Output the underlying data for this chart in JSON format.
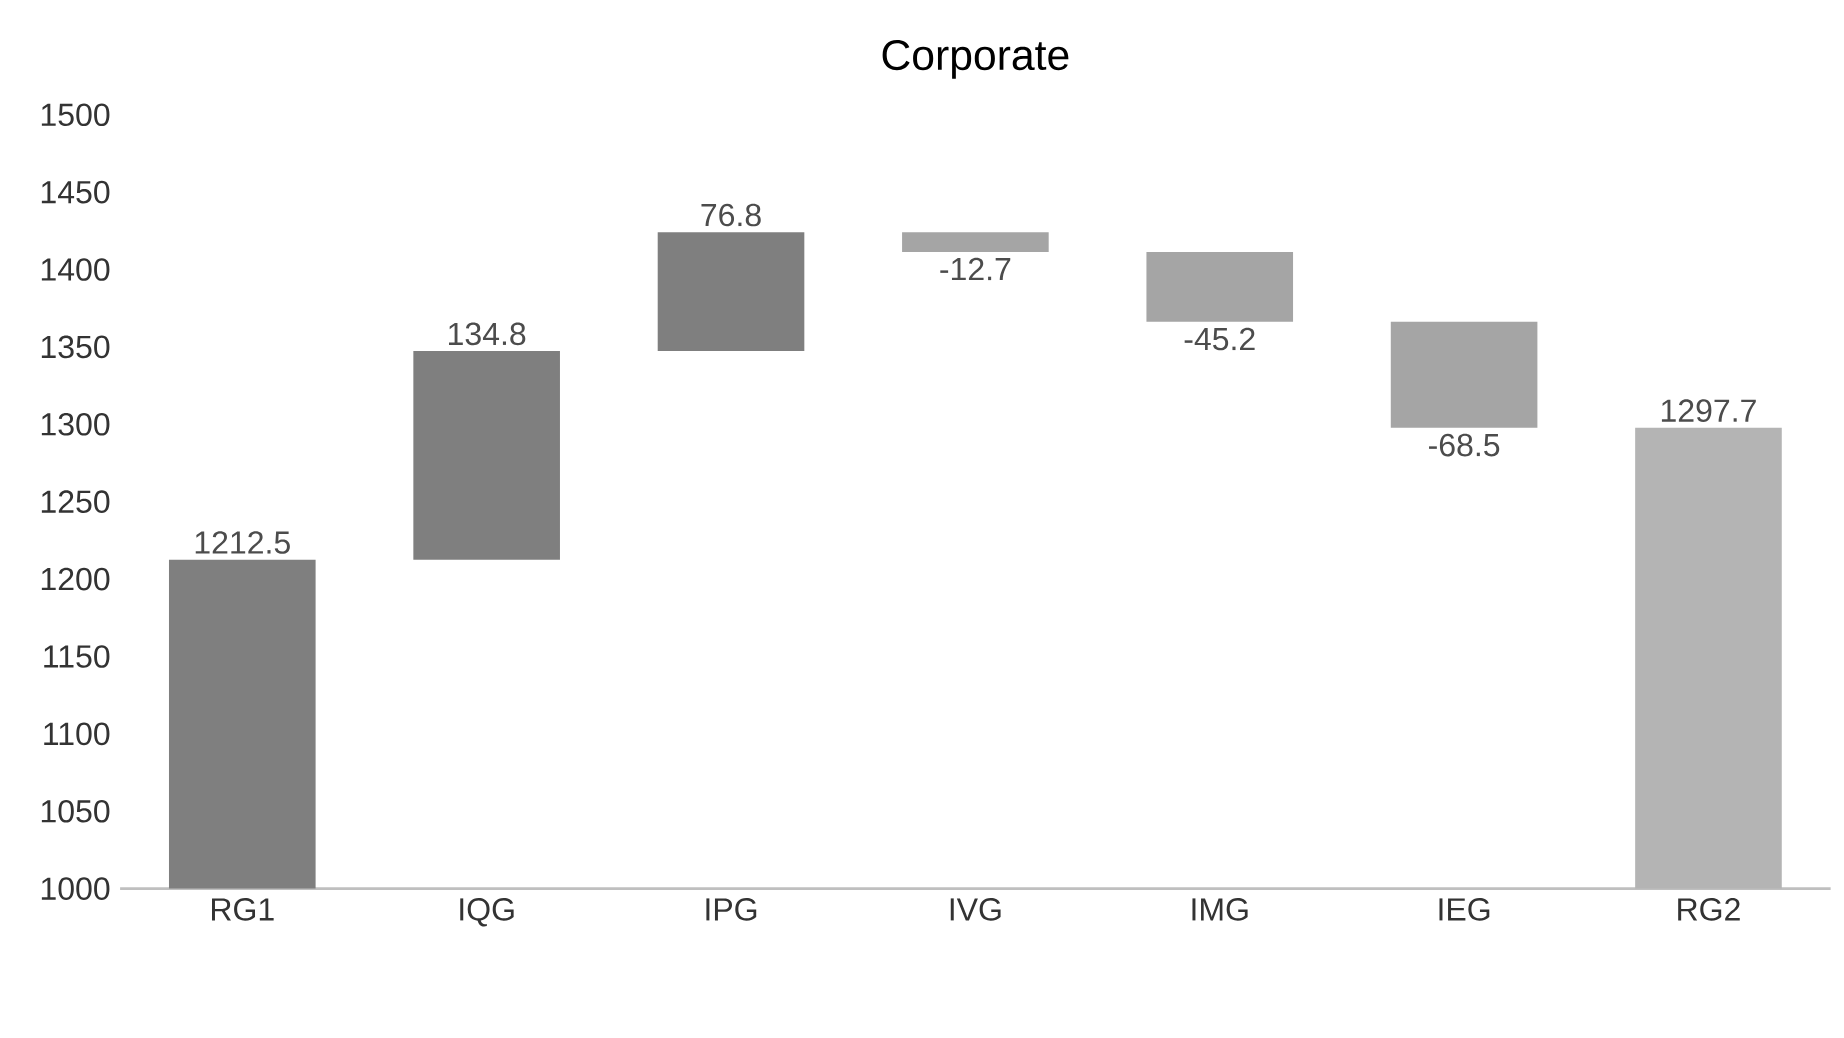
{
  "chart_data": {
    "type": "bar",
    "title": "Corporate",
    "categories": [
      "RG1",
      "IQG",
      "IPG",
      "IVG",
      "IMG",
      "IEG",
      "RG2"
    ],
    "base": [
      1000,
      1212.5,
      1347.3,
      1424.1,
      1411.4,
      1366.2,
      1000
    ],
    "values": [
      212.5,
      134.8,
      76.8,
      -12.7,
      -45.2,
      -68.5,
      297.7
    ],
    "value_labels": [
      "1212.5",
      "134.8",
      "76.8",
      "-12.7",
      "-45.2",
      "-68.5",
      "1297.7"
    ],
    "colors": [
      "#7f7f7f",
      "#7f7f7f",
      "#7f7f7f",
      "#a5a5a5",
      "#a5a5a5",
      "#a5a5a5",
      "#b4b4b4"
    ],
    "ylim": [
      1000,
      1500
    ],
    "yticks": [
      1000,
      1050,
      1100,
      1150,
      1200,
      1250,
      1300,
      1350,
      1400,
      1450,
      1500
    ],
    "grid": false
  }
}
